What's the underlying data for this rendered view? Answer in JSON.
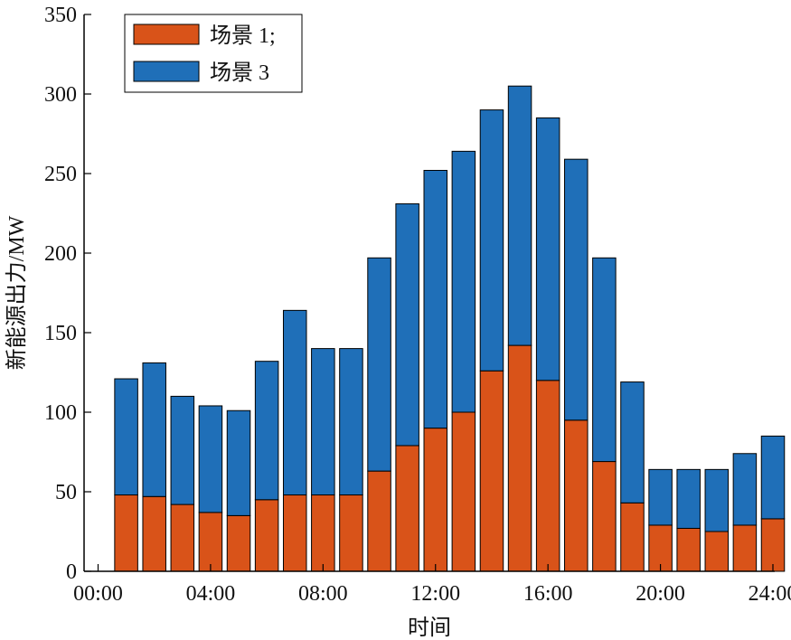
{
  "chart_data": {
    "type": "bar",
    "stacked": true,
    "xlabel": "时间",
    "ylabel": "新能源出力/MW",
    "ylim": [
      0,
      350
    ],
    "yticks": [
      0,
      50,
      100,
      150,
      200,
      250,
      300,
      350
    ],
    "xlim": [
      0,
      24
    ],
    "xticks": [
      0,
      4,
      8,
      12,
      16,
      20,
      24
    ],
    "xtick_labels": [
      "00:00",
      "04:00",
      "08:00",
      "12:00",
      "16:00",
      "20:00",
      "24:00"
    ],
    "x": [
      1,
      2,
      3,
      4,
      5,
      6,
      7,
      8,
      9,
      10,
      11,
      12,
      13,
      14,
      15,
      16,
      17,
      18,
      19,
      20,
      21,
      22,
      23,
      24
    ],
    "legend_position": "top-left",
    "grid": false,
    "series": [
      {
        "name": "场景 1;",
        "color": "#d95319",
        "values": [
          48,
          47,
          42,
          37,
          35,
          45,
          48,
          48,
          48,
          63,
          79,
          90,
          100,
          126,
          142,
          120,
          95,
          69,
          43,
          29,
          27,
          25,
          29,
          33
        ]
      },
      {
        "name": "场景 3",
        "color": "#1f6fb8",
        "values": [
          73,
          84,
          68,
          67,
          66,
          87,
          116,
          92,
          92,
          134,
          152,
          162,
          164,
          164,
          163,
          165,
          164,
          128,
          76,
          35,
          37,
          39,
          45,
          52
        ]
      }
    ]
  }
}
